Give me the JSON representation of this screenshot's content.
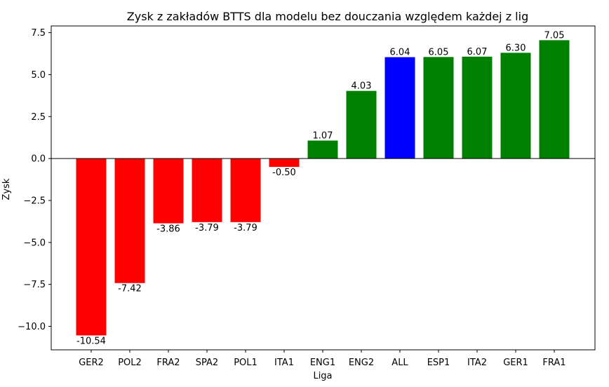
{
  "chart_data": {
    "type": "bar",
    "title": "Zysk z zakładów BTTS dla modelu bez douczania względem każdej z lig",
    "xlabel": "Liga",
    "ylabel": "Zysk",
    "categories": [
      "GER2",
      "POL2",
      "FRA2",
      "SPA2",
      "POL1",
      "ITA1",
      "ENG1",
      "ENG2",
      "ALL",
      "ESP1",
      "ITA2",
      "GER1",
      "FRA1"
    ],
    "values": [
      -10.54,
      -7.42,
      -3.86,
      -3.79,
      -3.79,
      -0.5,
      1.07,
      4.03,
      6.04,
      6.05,
      6.07,
      6.3,
      7.05
    ],
    "value_labels": [
      "-10.54",
      "-7.42",
      "-3.86",
      "-3.79",
      "-3.79",
      "-0.50",
      "1.07",
      "4.03",
      "6.04",
      "6.05",
      "6.07",
      "6.30",
      "7.05"
    ],
    "highlight_category": "ALL",
    "ylim": [
      -11.4,
      7.9
    ],
    "yticks": [
      -10.0,
      -7.5,
      -5.0,
      -2.5,
      0.0,
      2.5,
      5.0,
      7.5
    ],
    "ytick_labels": [
      "−10.0",
      "−7.5",
      "−5.0",
      "−2.5",
      "0.0",
      "2.5",
      "5.0",
      "7.5"
    ],
    "zero_line": true,
    "grid": false,
    "legend": "none"
  },
  "colors": {
    "positive": "#008000",
    "negative": "#ff0000",
    "highlight": "#0000ff",
    "axis": "#000000"
  }
}
